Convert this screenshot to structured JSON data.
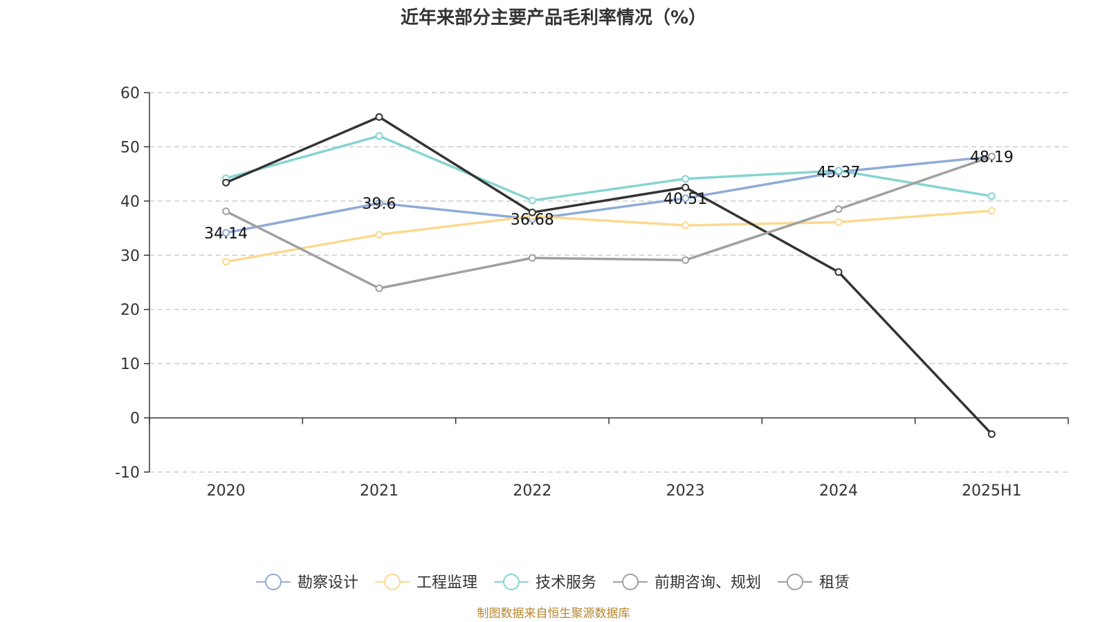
{
  "chart_data": {
    "type": "line",
    "title": "近年来部分主要产品毛利率情况（%）",
    "categories": [
      "2020",
      "2021",
      "2022",
      "2023",
      "2024",
      "2025H1"
    ],
    "ylim": [
      -10,
      60
    ],
    "yticks": [
      "-10",
      "0",
      "10",
      "20",
      "30",
      "40",
      "50",
      "60"
    ],
    "grid": true,
    "legend_position": "bottom",
    "series": [
      {
        "name": "勘察设计",
        "color": "#8eabd8",
        "values": [
          34.14,
          39.6,
          36.68,
          40.51,
          45.37,
          48.19
        ],
        "labels": [
          "34.14",
          "39.6",
          "36.68",
          "40.51",
          "45.37",
          "48.19"
        ]
      },
      {
        "name": "工程监理",
        "color": "#fbd98f",
        "values": [
          28.8,
          33.8,
          37.2,
          35.5,
          36.1,
          38.2
        ]
      },
      {
        "name": "技术服务",
        "color": "#86d4d2",
        "values": [
          44.2,
          52.0,
          40.1,
          44.1,
          45.6,
          40.9
        ]
      },
      {
        "name": "前期咨询、规划",
        "color": "#333333",
        "values": [
          43.4,
          55.5,
          37.9,
          42.5,
          26.9,
          -3.0
        ]
      },
      {
        "name": "租赁",
        "color": "#a0a0a0",
        "values": [
          38.1,
          23.9,
          29.5,
          29.1,
          38.5,
          48.2
        ]
      }
    ],
    "source": "制图数据来自恒生聚源数据库"
  }
}
